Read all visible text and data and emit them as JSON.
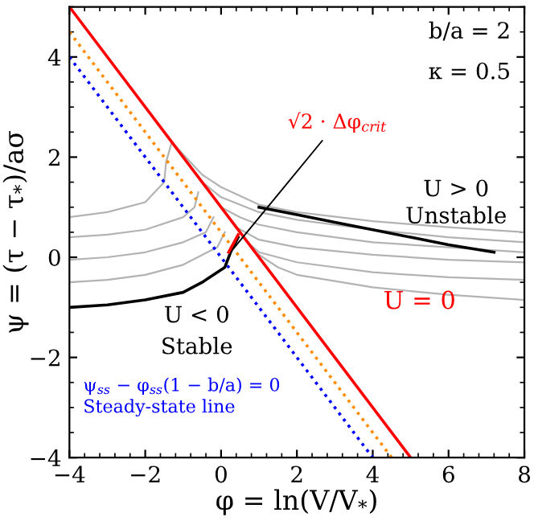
{
  "chart_data": {
    "type": "line",
    "xlabel": "φ = ln(V/V$_{*}$)",
    "ylabel": "ψ = (τ − τ$_{*}$)/aσ",
    "xlim": [
      -4,
      8
    ],
    "ylim": [
      -4,
      5
    ],
    "xticks": [
      {
        "value": -4,
        "label": "−4"
      },
      {
        "value": -2,
        "label": "−2"
      },
      0,
      2,
      4,
      6,
      8
    ],
    "yticks": [
      {
        "value": -4,
        "label": "−4"
      },
      {
        "value": -2,
        "label": "−2"
      },
      0,
      2,
      4
    ],
    "grid": false,
    "legend": false,
    "marker": "none",
    "annotations": [
      "b/a = 2",
      "κ = 0.5",
      "U > 0",
      "Unstable",
      "U < 0",
      "Stable"
    ],
    "series": [
      {
        "color": "#b3b3b3",
        "x": [
          -1.3,
          -0.5,
          0,
          1,
          2,
          4,
          6,
          8
        ],
        "values": [
          2.3,
          1.65,
          1.4,
          1.05,
          0.9,
          0.72,
          0.6,
          0.5
        ]
      },
      {
        "color": "#b3b3b3",
        "x": [
          -0.5,
          0,
          1,
          2,
          4,
          6,
          8
        ],
        "values": [
          1.5,
          1.2,
          0.9,
          0.75,
          0.55,
          0.4,
          0.3
        ]
      },
      {
        "color": "#b3b3b3",
        "x": [
          0,
          0.5,
          1,
          2,
          4,
          6,
          8
        ],
        "values": [
          1.0,
          0.8,
          0.65,
          0.5,
          0.3,
          0.2,
          0.1
        ]
      },
      {
        "color": "#b3b3b3",
        "x": [
          0.4,
          1,
          2,
          4,
          6,
          8
        ],
        "values": [
          0.6,
          0.35,
          0.2,
          0.05,
          -0.05,
          -0.1
        ]
      },
      {
        "color": "#b3b3b3",
        "x": [
          0.7,
          1,
          2,
          4,
          6,
          8
        ],
        "values": [
          0.3,
          0.1,
          -0.1,
          -0.3,
          -0.4,
          -0.45
        ]
      },
      {
        "color": "#b3b3b3",
        "x": [
          0.9,
          1.5,
          2,
          4,
          6,
          8
        ],
        "values": [
          0.1,
          -0.2,
          -0.35,
          -0.6,
          -0.75,
          -0.85
        ]
      },
      {
        "color": "#b3b3b3",
        "x": [
          -1.3,
          -1.45,
          -1.5,
          -2,
          -3,
          -4
        ],
        "values": [
          2.3,
          1.9,
          1.5,
          1.1,
          0.9,
          0.8
        ]
      },
      {
        "color": "#b3b3b3",
        "x": [
          -0.6,
          -0.7,
          -1,
          -2,
          -3,
          -4
        ],
        "values": [
          1.3,
          1.0,
          0.8,
          0.55,
          0.45,
          0.4
        ]
      },
      {
        "color": "#b3b3b3",
        "x": [
          -0.2,
          -0.4,
          -1,
          -2,
          -3,
          -4
        ],
        "values": [
          0.8,
          0.5,
          0.3,
          0.1,
          0.0,
          -0.05
        ]
      },
      {
        "color": "#b3b3b3",
        "x": [
          0.1,
          -0.1,
          -1,
          -2,
          -3,
          -4
        ],
        "values": [
          0.5,
          0.2,
          -0.15,
          -0.35,
          -0.45,
          -0.5
        ]
      },
      {
        "color": "#0000ff",
        "line_style": "dotted",
        "name": "ψ$_{ss}$ − φ$_{ss}$(1 − b/a) = 0\nSteady-state line",
        "x": [
          -4,
          4
        ],
        "values": [
          4,
          -4
        ]
      },
      {
        "color": "#ff8c00",
        "line_style": "dotted",
        "x": [
          -4,
          4.5
        ],
        "values": [
          4.5,
          -4
        ]
      },
      {
        "color": "#ff0000",
        "name": "U = 0",
        "x": [
          -4,
          5
        ],
        "values": [
          5,
          -4
        ]
      },
      {
        "color": "#000000",
        "x": [
          1.0,
          2,
          3,
          4,
          5,
          6,
          7.2
        ],
        "values": [
          1.0,
          0.85,
          0.7,
          0.55,
          0.4,
          0.25,
          0.1
        ]
      },
      {
        "color": "#000000",
        "x": [
          0.45,
          0.25,
          0.1,
          -0.5,
          -1,
          -2,
          -3,
          -4
        ],
        "values": [
          0.4,
          0.1,
          -0.2,
          -0.5,
          -0.7,
          -0.85,
          -0.95,
          -1.0
        ]
      },
      {
        "color": "#ff0000",
        "name": "√2 · Δφ$_{crit}$",
        "x": [
          0.2,
          0.45
        ],
        "values": [
          0.1,
          0.45
        ]
      }
    ]
  }
}
